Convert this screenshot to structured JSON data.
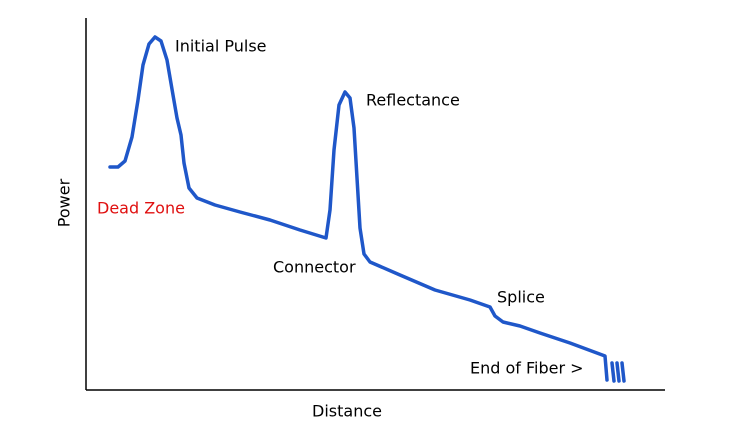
{
  "axes": {
    "y_label": "Power",
    "x_label": "Distance"
  },
  "annotations": [
    {
      "label": "Initial Pulse"
    },
    {
      "label": "Reflectance"
    },
    {
      "label": "Dead Zone"
    },
    {
      "label": "Connector"
    },
    {
      "label": "Splice"
    },
    {
      "label": "End of Fiber >"
    }
  ]
}
